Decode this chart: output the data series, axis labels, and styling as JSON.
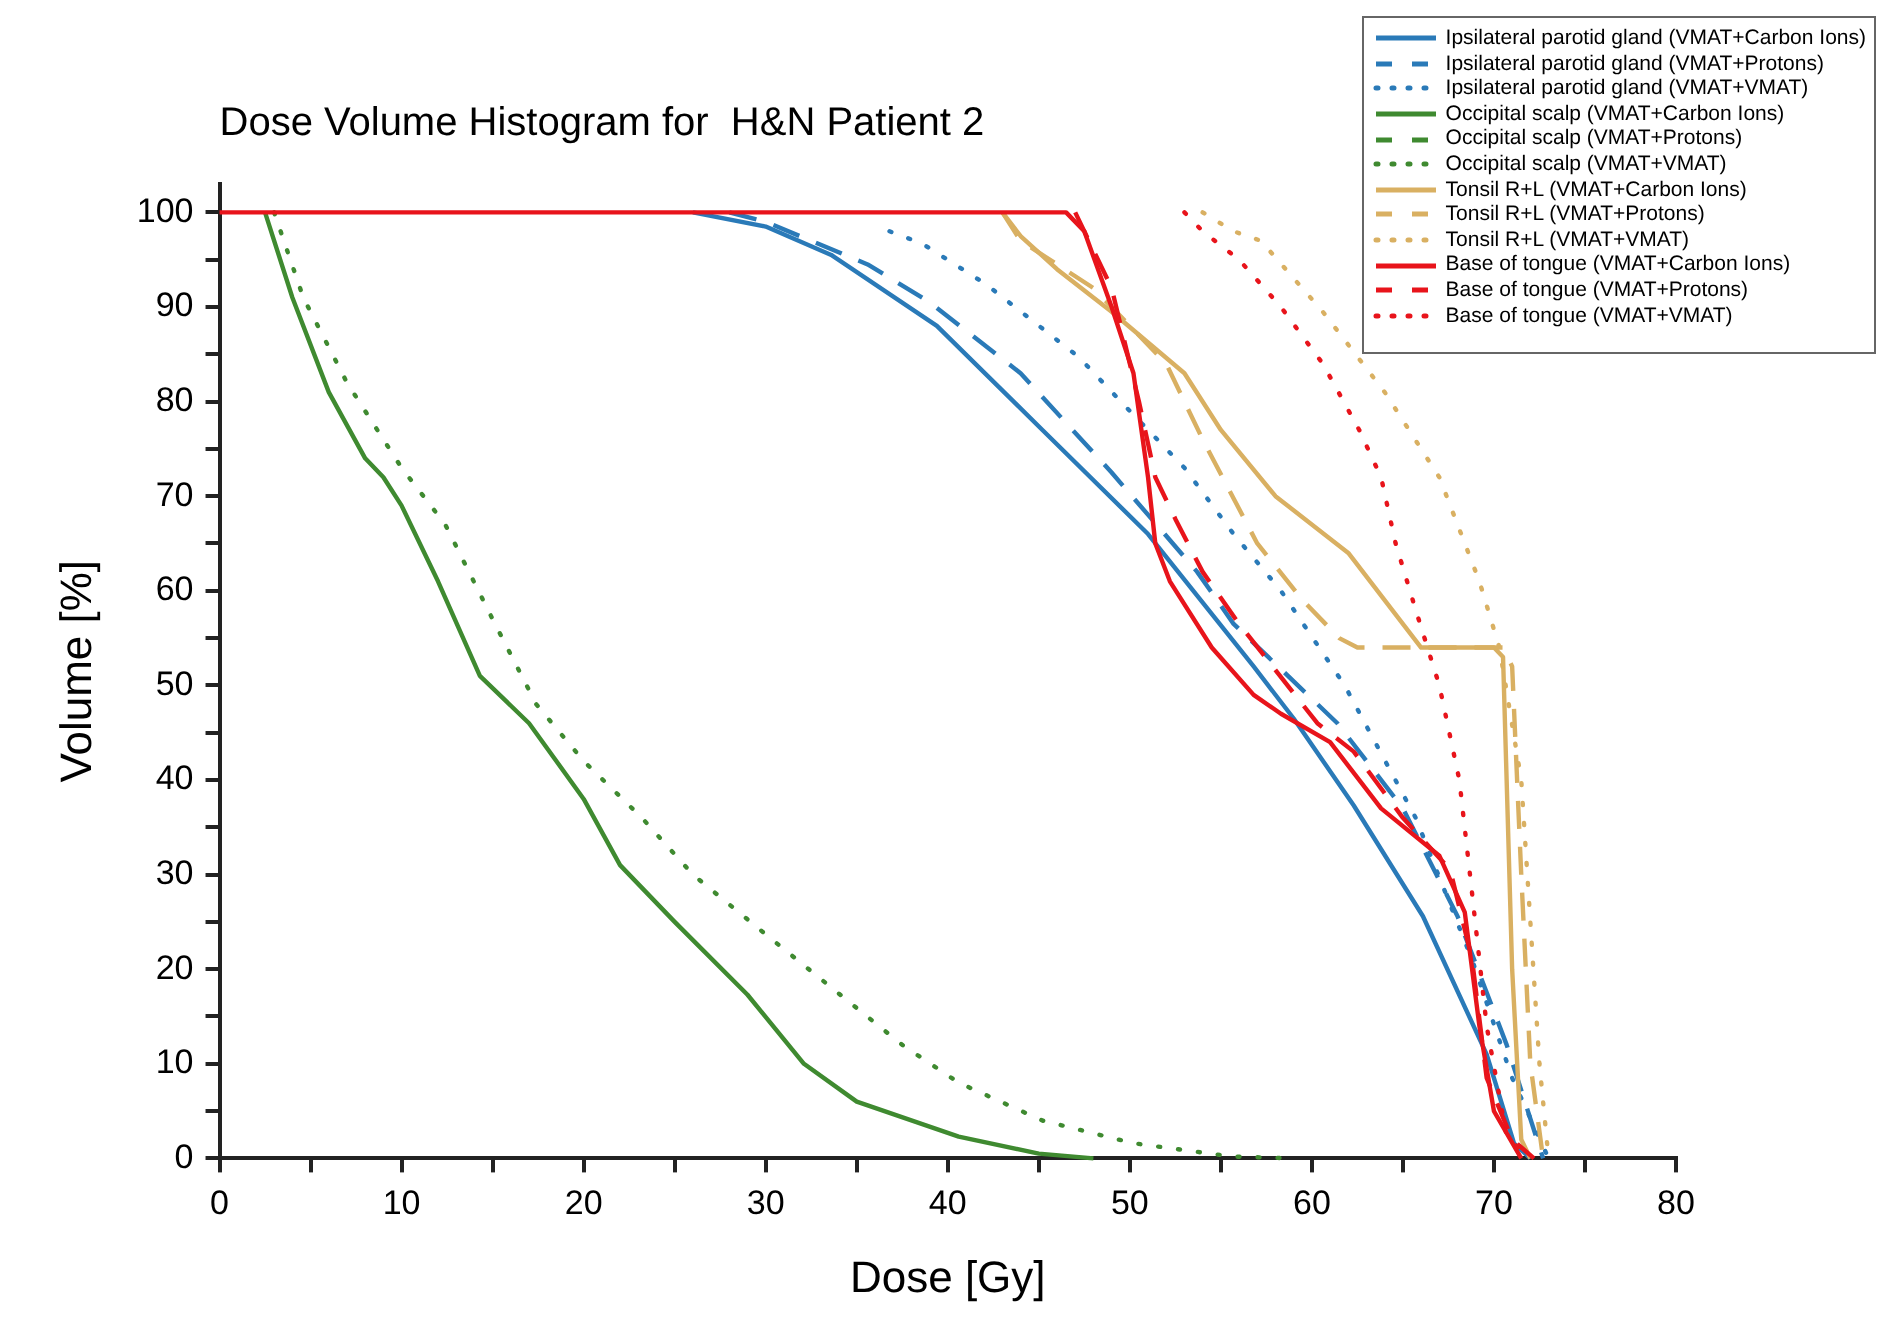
{
  "chart_data": {
    "type": "line",
    "title": "Dose Volume Histogram for  H&N Patient 2",
    "xlabel": "Dose [Gy]",
    "ylabel": "Volume [%]",
    "xlim": [
      0,
      80
    ],
    "ylim": [
      0,
      103
    ],
    "xticks": [
      0,
      {
        "value": 5,
        "label": null
      },
      10,
      {
        "value": 15,
        "label": null
      },
      20,
      {
        "value": 25,
        "label": null
      },
      30,
      {
        "value": 35,
        "label": null
      },
      40,
      {
        "value": 45,
        "label": null
      },
      50,
      {
        "value": 55,
        "label": null
      },
      60,
      {
        "value": 65,
        "label": null
      },
      70,
      {
        "value": 75,
        "label": null
      },
      80
    ],
    "yticks": [
      0,
      {
        "value": 5,
        "label": null
      },
      10,
      {
        "value": 15,
        "label": null
      },
      20,
      {
        "value": 25,
        "label": null
      },
      30,
      {
        "value": 35,
        "label": null
      },
      40,
      {
        "value": 45,
        "label": null
      },
      50,
      {
        "value": 55,
        "label": null
      },
      60,
      {
        "value": 65,
        "label": null
      },
      70,
      {
        "value": 75,
        "label": null
      },
      80,
      {
        "value": 85,
        "label": null
      },
      90,
      {
        "value": 95,
        "label": null
      },
      100
    ],
    "grid": false,
    "legend": "top right",
    "marker": "none",
    "series": [
      {
        "name": "Ipsilateral parotid gland (VMAT+Carbon Ions)",
        "color": "#2a7ab8",
        "line_style": "solid",
        "x": [
          26,
          30,
          33.6,
          39.4,
          45.2,
          51,
          56.8,
          59,
          62.3,
          66.1,
          69.6,
          71.1,
          72
        ],
        "values": [
          100,
          98.5,
          95.5,
          88,
          77,
          66,
          52,
          46.5,
          37.3,
          25.6,
          11,
          1.6,
          0
        ]
      },
      {
        "name": "Ipsilateral parotid gland (VMAT+Protons)",
        "color": "#2a7ab8",
        "line_style": "dashed",
        "x": [
          28,
          30,
          35.6,
          39,
          44,
          49,
          53.7,
          55.7,
          61.4,
          65,
          68,
          70.7,
          72.7
        ],
        "values": [
          100,
          99,
          94.5,
          90.5,
          83,
          72.5,
          62,
          56.5,
          46,
          37,
          25.6,
          12,
          0
        ]
      },
      {
        "name": "Ipsilateral parotid gland (VMAT+VMAT)",
        "color": "#2a7ab8",
        "line_style": "dotted",
        "x": [
          36.8,
          38.6,
          42.1,
          47.2,
          50.2,
          53,
          55.7,
          58.3,
          61.8,
          65.7,
          68.8,
          71,
          73
        ],
        "values": [
          98,
          96.7,
          92.4,
          84.7,
          78.6,
          73,
          66,
          60,
          50,
          36,
          21,
          8.5,
          0
        ]
      },
      {
        "name": "Occipital scalp (VMAT+Carbon Ions)",
        "color": "#3f8a30",
        "line_style": "solid",
        "x": [
          2.5,
          4,
          6,
          8,
          9,
          10,
          12,
          14.3,
          17,
          20,
          22,
          25,
          29,
          32.1,
          35,
          40.6,
          45,
          48
        ],
        "values": [
          100,
          91,
          81,
          74,
          72,
          69,
          61,
          51,
          46,
          38,
          31,
          25,
          17.3,
          10,
          6,
          2.3,
          0.5,
          0
        ]
      },
      {
        "name": "Occipital scalp (VMAT+Protons)",
        "color": "#3f8a30",
        "line_style": "dashed"
      },
      {
        "name": "Occipital scalp (VMAT+VMAT)",
        "color": "#3f8a30",
        "line_style": "dotted",
        "x": [
          3,
          4.6,
          7,
          10,
          12.4,
          15,
          17.4,
          20,
          23.2,
          26,
          29.8,
          33,
          37.5,
          40.6,
          45.2,
          50.2,
          55.6,
          59
        ],
        "values": [
          100,
          91,
          82,
          73,
          67,
          57,
          48,
          42,
          36,
          30,
          24,
          19,
          12,
          8,
          4,
          1.6,
          0.2,
          0
        ]
      },
      {
        "name": "Tonsil R+L (VMAT+Carbon Ions)",
        "color": "#d9b062",
        "line_style": "solid",
        "x": [
          43,
          44,
          46,
          49,
          53,
          55,
          58,
          62,
          66,
          70,
          70.5,
          71,
          71.5,
          72
        ],
        "values": [
          100,
          97.5,
          94,
          89.5,
          83,
          77,
          70,
          64,
          54,
          54,
          53,
          20,
          2,
          0
        ]
      },
      {
        "name": "Tonsil R+L (VMAT+Protons)",
        "color": "#d9b062",
        "line_style": "dashed",
        "x": [
          43,
          44,
          48,
          52,
          54,
          57,
          59.5,
          61.5,
          62.5,
          70.5,
          71,
          71.5,
          72,
          72.7
        ],
        "values": [
          100,
          97,
          92,
          84,
          76,
          65,
          59,
          55,
          54,
          54,
          52,
          30,
          10,
          0
        ]
      },
      {
        "name": "Tonsil R+L (VMAT+VMAT)",
        "color": "#d9b062",
        "line_style": "dotted",
        "x": [
          54,
          55.7,
          57.2,
          60.6,
          64,
          67,
          69.2,
          70.3,
          71.5,
          72.5,
          73
        ],
        "values": [
          100,
          98,
          97,
          89.5,
          81,
          72,
          61,
          54,
          40,
          10,
          0
        ]
      },
      {
        "name": "Base of tongue (VMAT+Carbon Ions)",
        "color": "#e8141b",
        "line_style": "solid",
        "x": [
          0,
          46.5,
          47.5,
          49,
          50.2,
          51,
          51.4,
          52.2,
          54.5,
          56.8,
          58.3,
          61,
          63.8,
          67,
          68.4,
          69.2,
          70,
          71.5
        ],
        "values": [
          100,
          100,
          98,
          90,
          83,
          72,
          65,
          61,
          54,
          49,
          47,
          44,
          37,
          32,
          26,
          14,
          5,
          0
        ]
      },
      {
        "name": "Base of tongue (VMAT+Protons)",
        "color": "#e8141b",
        "line_style": "dashed",
        "x": [
          47,
          49,
          50.5,
          51.4,
          52.5,
          54,
          56,
          60.3,
          62.3,
          65,
          67.6,
          68.8,
          69.6,
          71,
          72.2
        ],
        "values": [
          100,
          92,
          80,
          72,
          67.6,
          62,
          56.5,
          46,
          43,
          36,
          30.5,
          21,
          8.5,
          2,
          0
        ]
      },
      {
        "name": "Base of tongue (VMAT+VMAT)",
        "color": "#e8141b",
        "line_style": "dotted",
        "x": [
          53,
          54,
          56,
          58.3,
          60.6,
          62.6,
          63.8,
          64.6,
          65.7,
          67,
          68.1,
          68.8,
          69.6,
          70.7,
          72
        ],
        "values": [
          100,
          98,
          95,
          90,
          84,
          77,
          72,
          65,
          58,
          50,
          40,
          28,
          14,
          2.3,
          0
        ]
      }
    ]
  }
}
